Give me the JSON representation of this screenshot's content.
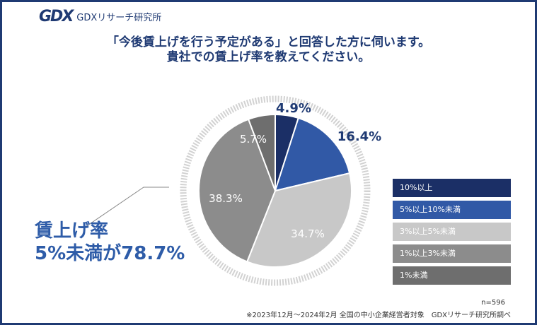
{
  "brand": {
    "mark": "GDX",
    "name": "GDXリサーチ研究所"
  },
  "title": {
    "line1": "「今後賃上げを行う予定がある」と回答した方に伺います。",
    "line2": "貴社での賃上げ率を教えてください。"
  },
  "callout": {
    "line1": "賃上げ率",
    "line2": "5%未満が78.7%"
  },
  "chart_data": {
    "type": "pie",
    "title": "貴社での賃上げ率を教えてください。",
    "categories": [
      "10%以上",
      "5%以上10%未満",
      "3%以上5%未満",
      "1%以上3%未満",
      "1%未満"
    ],
    "values": [
      4.9,
      16.4,
      34.7,
      38.3,
      5.7
    ],
    "labels": [
      "4.9%",
      "16.4%",
      "34.7%",
      "38.3%",
      "5.7%"
    ],
    "colors": [
      "#1b2f66",
      "#3159a6",
      "#c8c8c8",
      "#8c8c8c",
      "#6e6e6e"
    ],
    "label_colors": [
      "#1f3a73",
      "#1f3a73",
      "#ffffff",
      "#ffffff",
      "#ffffff"
    ],
    "legend_position": "right"
  },
  "n_label": "n=596",
  "footnote": "※2023年12月～2024年2月 全国の中小企業経営者対象　GDXリサーチ研究所調べ"
}
